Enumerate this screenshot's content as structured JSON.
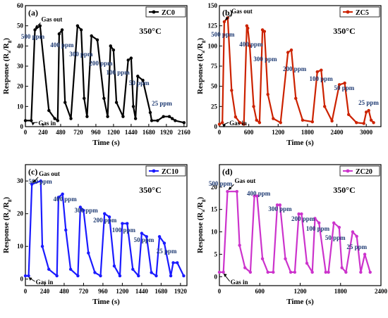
{
  "chart_data": [
    {
      "type": "line",
      "panel_label": "(a)",
      "legend": "ZC0",
      "temperature": "350°C",
      "xlabel": "Time (s)",
      "ylabel": "Response (Ra/Rg)",
      "ylabel_main": "Response (R",
      "ylabel_sub1": "a",
      "ylabel_sep": "/R",
      "ylabel_sub2": "g",
      "ylabel_end": ")",
      "xlim": [
        0,
        2200
      ],
      "ylim": [
        0,
        60
      ],
      "xticks": [
        0,
        240,
        480,
        720,
        960,
        1200,
        1440,
        1680,
        1920,
        2160
      ],
      "xtick_labels": [
        "0",
        "240",
        "480",
        "720",
        "960",
        "1200",
        "1440",
        "1680",
        "1920",
        "2160"
      ],
      "yticks": [
        0,
        10,
        20,
        30,
        40,
        50,
        60
      ],
      "color": "#000000",
      "series": [
        {
          "name": "ZC0",
          "x": [
            0,
            80,
            130,
            200,
            320,
            400,
            440,
            460,
            500,
            540,
            620,
            710,
            760,
            800,
            840,
            900,
            980,
            1070,
            1120,
            1160,
            1200,
            1240,
            1330,
            1400,
            1440,
            1470,
            1500,
            1530,
            1600,
            1700,
            1720,
            1800,
            1880,
            1960,
            2000,
            2040,
            2160
          ],
          "y": [
            3,
            3,
            48,
            50,
            8,
            4,
            3,
            46,
            48,
            12,
            4,
            50,
            48,
            14,
            5,
            45,
            43,
            14,
            5,
            40,
            38,
            12,
            5,
            33,
            34,
            10,
            4,
            25,
            23,
            7,
            3,
            3,
            5,
            5,
            4,
            3,
            2
          ]
        }
      ],
      "pulse_times": [
        120,
        460,
        700,
        990,
        1240,
        1530,
        1840
      ],
      "pulses": [
        {
          "conc": "500 ppm"
        },
        {
          "conc": "400 ppm"
        },
        {
          "conc": "300 ppm"
        },
        {
          "conc": "200 ppm"
        },
        {
          "conc": "100 ppm"
        },
        {
          "conc": "50 ppm"
        },
        {
          "conc": "25 ppm"
        }
      ],
      "gas_out_label": "Gas out",
      "gas_in_label": "Gas in"
    },
    {
      "type": "line",
      "panel_label": "(b)",
      "legend": "ZC5",
      "temperature": "350°C",
      "xlabel": "Time (s)",
      "ylabel": "Response (Ra/Rg)",
      "ylabel_main": "Response (R",
      "ylabel_sub1": "a",
      "ylabel_sep": "/R",
      "ylabel_sub2": "g",
      "ylabel_end": ")",
      "xlim": [
        0,
        3300
      ],
      "ylim": [
        0,
        150
      ],
      "xticks": [
        0,
        600,
        1200,
        1800,
        2400,
        3000
      ],
      "xtick_labels": [
        "0",
        "600",
        "1200",
        "1800",
        "2400",
        "3000"
      ],
      "yticks": [
        0,
        25,
        50,
        75,
        100,
        125,
        150
      ],
      "color": "#cc2200",
      "series": [
        {
          "name": "ZC5",
          "x": [
            0,
            60,
            100,
            170,
            250,
            330,
            420,
            500,
            560,
            580,
            620,
            700,
            760,
            820,
            880,
            920,
            990,
            1100,
            1250,
            1400,
            1470,
            1560,
            1700,
            1900,
            2000,
            2080,
            2150,
            2300,
            2450,
            2560,
            2640,
            2800,
            2950,
            3000,
            3050,
            3100,
            3150
          ],
          "y": [
            3,
            5,
            130,
            135,
            45,
            12,
            5,
            3,
            125,
            122,
            100,
            25,
            8,
            5,
            120,
            118,
            40,
            10,
            5,
            92,
            95,
            35,
            8,
            6,
            68,
            70,
            25,
            7,
            52,
            54,
            15,
            5,
            4,
            18,
            20,
            8,
            5
          ]
        }
      ],
      "pulse_times": [
        100,
        560,
        880,
        1450,
        2020,
        2520,
        3020
      ],
      "pulses": [
        {
          "conc": "500 ppm"
        },
        {
          "conc": "400 ppm"
        },
        {
          "conc": "300 ppm"
        },
        {
          "conc": "200 ppm"
        },
        {
          "conc": "100 ppm"
        },
        {
          "conc": "50 ppm"
        },
        {
          "conc": "25 ppm"
        }
      ],
      "gas_out_label": "Gas out",
      "gas_in_label": "Gas in"
    },
    {
      "type": "line",
      "panel_label": "(c)",
      "legend": "ZC10",
      "temperature": "350°C",
      "xlabel": "Time (s)",
      "ylabel": "Response (Ra/Rg)",
      "ylabel_main": "Response (R",
      "ylabel_sub1": "a",
      "ylabel_sep": "/R",
      "ylabel_sub2": "g",
      "ylabel_end": ")",
      "xlim": [
        0,
        2000
      ],
      "ylim": [
        -2,
        35
      ],
      "xticks": [
        0,
        240,
        480,
        720,
        960,
        1200,
        1440,
        1680,
        1920
      ],
      "xtick_labels": [
        "0",
        "240",
        "480",
        "720",
        "960",
        "1200",
        "1440",
        "1680",
        "1920"
      ],
      "yticks": [
        0,
        10,
        20,
        30
      ],
      "color": "#1a1aff",
      "series": [
        {
          "name": "ZC10",
          "x": [
            0,
            40,
            80,
            190,
            210,
            290,
            390,
            410,
            460,
            500,
            560,
            650,
            680,
            720,
            780,
            860,
            930,
            980,
            1040,
            1100,
            1170,
            1200,
            1260,
            1330,
            1400,
            1440,
            1500,
            1560,
            1620,
            1660,
            1720,
            1800,
            1830,
            1880,
            1960
          ],
          "y": [
            1,
            1,
            29,
            30,
            10,
            3,
            1,
            25,
            26,
            15,
            3,
            1,
            22,
            21,
            8,
            2,
            1,
            20,
            19,
            4,
            1,
            17,
            17,
            3,
            1,
            14,
            13,
            2,
            1,
            13,
            11,
            1,
            5,
            5,
            1
          ]
        }
      ],
      "pulse_times": [
        80,
        420,
        700,
        950,
        1200,
        1450,
        1730
      ],
      "pulses": [
        {
          "conc": "500 ppm"
        },
        {
          "conc": "400 ppm"
        },
        {
          "conc": "300 ppm"
        },
        {
          "conc": "200 ppm"
        },
        {
          "conc": "100 ppm"
        },
        {
          "conc": "50 ppm"
        },
        {
          "conc": "25 ppm"
        }
      ],
      "gas_out_label": "Gas out",
      "gas_in_label": "Gas in"
    },
    {
      "type": "line",
      "panel_label": "(d)",
      "legend": "ZC20",
      "temperature": "350°C",
      "xlabel": "Time (s)",
      "ylabel": "Response (Ra/Rg)",
      "ylabel_main": "Response (R",
      "ylabel_sub1": "a",
      "ylabel_sep": "/R",
      "ylabel_sub2": "g",
      "ylabel_end": ")",
      "xlim": [
        0,
        2400
      ],
      "ylim": [
        -2,
        25
      ],
      "xticks": [
        0,
        600,
        1200,
        1800,
        2400
      ],
      "xtick_labels": [
        "0",
        "600",
        "1200",
        "1800",
        "2400"
      ],
      "yticks": [
        0,
        5,
        10,
        15,
        20
      ],
      "color": "#cc33cc",
      "series": [
        {
          "name": "ZC20",
          "x": [
            0,
            60,
            120,
            260,
            300,
            380,
            460,
            520,
            560,
            640,
            720,
            800,
            860,
            900,
            980,
            1060,
            1120,
            1180,
            1220,
            1300,
            1380,
            1420,
            1480,
            1580,
            1620,
            1700,
            1780,
            1820,
            1880,
            1980,
            2040,
            2100,
            2160,
            2240
          ],
          "y": [
            1,
            1,
            19,
            19,
            7,
            2,
            1,
            18,
            18,
            4,
            1,
            1,
            16,
            16,
            4,
            1,
            1,
            14,
            14,
            3,
            1,
            13,
            12,
            1,
            1,
            12,
            11,
            2,
            1,
            10,
            9,
            1,
            5,
            1
          ]
        }
      ],
      "pulse_times": [
        120,
        520,
        860,
        1180,
        1420,
        1700,
        2020
      ],
      "pulses": [
        {
          "conc": "500 ppm"
        },
        {
          "conc": "400 ppm"
        },
        {
          "conc": "300 ppm"
        },
        {
          "conc": "200 ppm"
        },
        {
          "conc": "100 ppm"
        },
        {
          "conc": "50 ppm"
        },
        {
          "conc": "25 ppm"
        }
      ],
      "gas_out_label": "Gas out",
      "gas_in_label": "Gas in"
    }
  ]
}
